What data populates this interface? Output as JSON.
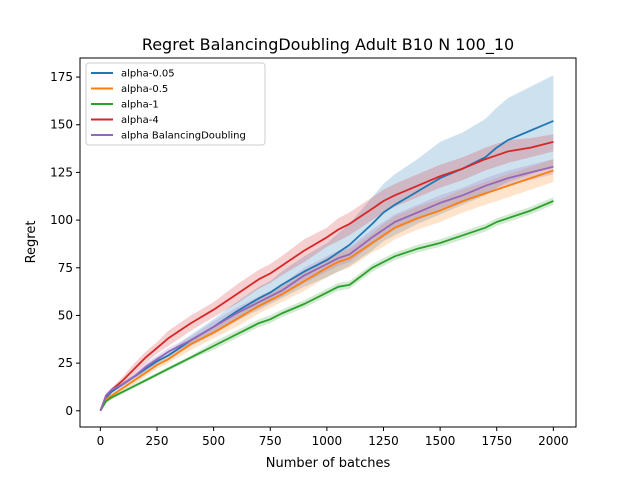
{
  "chart_data": {
    "type": "line",
    "title": "Regret BalancingDoubling Adult B10 N 100_10",
    "xlabel": "Number of batches",
    "ylabel": "Regret",
    "xlim": [
      -90,
      2100
    ],
    "ylim": [
      -8.5,
      185
    ],
    "xticks": [
      0,
      250,
      500,
      750,
      1000,
      1250,
      1500,
      1750,
      2000
    ],
    "yticks": [
      0,
      25,
      50,
      75,
      100,
      125,
      150,
      175
    ],
    "grid": false,
    "legend_position": "upper-left",
    "x": [
      0,
      25,
      50,
      100,
      150,
      200,
      250,
      300,
      400,
      500,
      600,
      700,
      750,
      800,
      900,
      1000,
      1050,
      1100,
      1200,
      1250,
      1300,
      1400,
      1500,
      1600,
      1700,
      1750,
      1800,
      1900,
      2000
    ],
    "series": [
      {
        "name": "alpha-0.05",
        "color": "#1f77b4",
        "values": [
          0,
          7,
          10,
          14,
          18,
          22,
          26,
          29,
          37,
          44,
          52,
          59,
          62,
          66,
          73,
          79,
          83,
          87,
          98,
          104,
          108,
          115,
          122,
          127,
          133,
          138,
          142,
          147,
          152
        ],
        "lower": [
          0,
          6,
          9,
          13,
          17,
          20,
          24,
          27,
          34,
          40,
          47,
          53,
          56,
          59,
          65,
          70,
          73,
          76,
          84,
          89,
          92,
          98,
          103,
          108,
          113,
          117,
          120,
          124,
          128
        ],
        "upper": [
          0,
          8,
          11,
          15,
          19,
          24,
          28,
          31,
          40,
          48,
          57,
          65,
          68,
          73,
          81,
          88,
          93,
          98,
          112,
          119,
          124,
          132,
          141,
          146,
          153,
          159,
          164,
          170,
          176
        ]
      },
      {
        "name": "alpha-0.5",
        "color": "#ff7f0e",
        "values": [
          0,
          6,
          8,
          12,
          16,
          20,
          24,
          27,
          35,
          41,
          48,
          55,
          58,
          61,
          68,
          75,
          78,
          80,
          88,
          92,
          96,
          101,
          105,
          110,
          114,
          116,
          118,
          122,
          126
        ],
        "lower": [
          0,
          5,
          7,
          11,
          14,
          18,
          22,
          25,
          32,
          38,
          44,
          51,
          54,
          57,
          63,
          70,
          73,
          75,
          83,
          86,
          90,
          95,
          99,
          104,
          108,
          110,
          112,
          116,
          120
        ],
        "upper": [
          0,
          7,
          9,
          13,
          18,
          22,
          26,
          29,
          38,
          44,
          52,
          59,
          62,
          65,
          73,
          80,
          83,
          85,
          93,
          98,
          102,
          107,
          111,
          116,
          120,
          122,
          124,
          128,
          132
        ]
      },
      {
        "name": "alpha-1",
        "color": "#2ca02c",
        "values": [
          0,
          5,
          7,
          10,
          13,
          16,
          19,
          22,
          28,
          34,
          40,
          46,
          48,
          51,
          56,
          62,
          65,
          66,
          75,
          78,
          81,
          85,
          88,
          92,
          96,
          99,
          101,
          105,
          110
        ],
        "lower": [
          0,
          4,
          6,
          9,
          12,
          15,
          18,
          21,
          27,
          32,
          38,
          44,
          46,
          49,
          54,
          60,
          63,
          64,
          73,
          76,
          79,
          83,
          86,
          90,
          94,
          97,
          99,
          103,
          108
        ],
        "upper": [
          0,
          6,
          8,
          11,
          14,
          17,
          20,
          23,
          29,
          36,
          42,
          48,
          50,
          53,
          58,
          64,
          67,
          68,
          77,
          80,
          83,
          87,
          90,
          94,
          98,
          101,
          103,
          107,
          112
        ]
      },
      {
        "name": "alpha-4",
        "color": "#d62728",
        "values": [
          0,
          8,
          11,
          16,
          22,
          28,
          33,
          38,
          46,
          53,
          61,
          69,
          72,
          76,
          84,
          91,
          95,
          98,
          106,
          110,
          113,
          118,
          123,
          127,
          132,
          134,
          136,
          138,
          141
        ],
        "lower": [
          0,
          7,
          10,
          14,
          19,
          25,
          30,
          34,
          42,
          49,
          56,
          64,
          67,
          71,
          78,
          86,
          89,
          92,
          100,
          104,
          107,
          112,
          117,
          121,
          126,
          128,
          130,
          133,
          136
        ],
        "upper": [
          0,
          9,
          12,
          18,
          25,
          31,
          36,
          42,
          50,
          57,
          66,
          74,
          77,
          81,
          90,
          96,
          101,
          104,
          112,
          116,
          119,
          124,
          129,
          133,
          138,
          140,
          142,
          143,
          145
        ]
      },
      {
        "name": "alpha BalancingDoubling",
        "color": "#9467bd",
        "values": [
          0,
          8,
          11,
          14,
          18,
          23,
          27,
          31,
          37,
          44,
          51,
          57,
          60,
          63,
          71,
          77,
          80,
          82,
          91,
          95,
          99,
          104,
          109,
          113,
          118,
          120,
          122,
          125,
          128
        ],
        "lower": [
          0,
          7,
          10,
          13,
          17,
          21,
          25,
          29,
          35,
          41,
          48,
          54,
          57,
          60,
          67,
          73,
          76,
          78,
          87,
          91,
          95,
          100,
          105,
          109,
          114,
          116,
          118,
          121,
          124
        ],
        "upper": [
          0,
          9,
          12,
          15,
          19,
          25,
          29,
          33,
          39,
          47,
          54,
          60,
          63,
          66,
          75,
          81,
          84,
          86,
          95,
          99,
          103,
          108,
          113,
          117,
          122,
          124,
          126,
          129,
          132
        ]
      }
    ]
  }
}
